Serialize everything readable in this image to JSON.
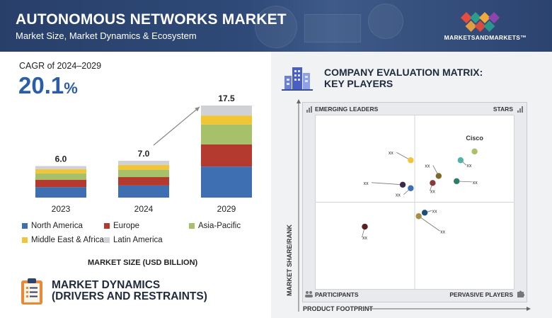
{
  "header": {
    "title": "AUTONOMOUS NETWORKS MARKET",
    "subtitle": "Market Size, Market Dynamics & Ecosystem",
    "brand": "MARKETSANDMARKETS™",
    "brand_colors": [
      "#e84c3d",
      "#2a9d8f",
      "#f2a93b",
      "#8e44ad"
    ]
  },
  "cagr": {
    "label": "CAGR of 2024–2029",
    "value": "20.1",
    "unit": "%"
  },
  "chart_data": [
    {
      "type": "bar",
      "stacked": true,
      "title": "",
      "categories": [
        "2023",
        "2024",
        "2029"
      ],
      "totals_labels": [
        "6.0",
        "7.0",
        "17.5"
      ],
      "totals": [
        6.0,
        7.0,
        17.5
      ],
      "series": [
        {
          "name": "North America",
          "color": "#3f6fb3",
          "values": [
            2.0,
            2.3,
            5.9
          ]
        },
        {
          "name": "Europe",
          "color": "#b4392f",
          "values": [
            1.4,
            1.6,
            4.2
          ]
        },
        {
          "name": "Asia-Pacific",
          "color": "#a7c06a",
          "values": [
            1.2,
            1.4,
            3.8
          ]
        },
        {
          "name": "Middle East & Africa",
          "color": "#f2c535",
          "values": [
            0.8,
            0.9,
            1.7
          ]
        },
        {
          "name": "Latin America",
          "color": "#cfd1d6",
          "values": [
            0.6,
            0.8,
            1.9
          ]
        }
      ],
      "xlabel": "MARKET SIZE (USD BILLION)",
      "ylabel": "",
      "ylim": [
        0,
        18.5
      ],
      "annotation": "arrow from 2024 to 2029"
    },
    {
      "type": "scatter",
      "title": "COMPANY EVALUATION MATRIX: KEY PLAYERS",
      "xlabel": "PRODUCT FOOTPRINT",
      "ylabel": "MARKET SHARE/RANK",
      "xlim": [
        0,
        100
      ],
      "ylim": [
        0,
        100
      ],
      "quadrants": {
        "top_left": "EMERGING LEADERS",
        "top_right": "STARS",
        "bottom_left": "PARTICIPANTS",
        "bottom_right": "PERVASIVE PLAYERS"
      },
      "points": [
        {
          "label": "Cisco",
          "x": 80,
          "y": 79,
          "color": "#a7c06a"
        },
        {
          "label": "xx",
          "x": 73,
          "y": 74,
          "color": "#4fb3a9"
        },
        {
          "label": "xx",
          "x": 48,
          "y": 74,
          "color": "#f2c535"
        },
        {
          "label": "xx",
          "x": 62,
          "y": 65,
          "color": "#7a6a2a"
        },
        {
          "label": "xx",
          "x": 71,
          "y": 62,
          "color": "#2e7d6b"
        },
        {
          "label": "xx",
          "x": 59,
          "y": 61,
          "color": "#8b3a3a"
        },
        {
          "label": "xx",
          "x": 44,
          "y": 60,
          "color": "#3b2a4a"
        },
        {
          "label": "xx",
          "x": 48,
          "y": 58,
          "color": "#3f6fb3"
        },
        {
          "label": "xx",
          "x": 55,
          "y": 44,
          "color": "#1f4e79"
        },
        {
          "label": "xx",
          "x": 52,
          "y": 42,
          "color": "#a39244"
        },
        {
          "label": "xx",
          "x": 25,
          "y": 36,
          "color": "#5c2020"
        }
      ]
    }
  ],
  "market_dynamics": {
    "title_line1": "MARKET DYNAMICS",
    "title_line2": "(DRIVERS AND RESTRAINTS)"
  },
  "cem": {
    "title_line1": "COMPANY EVALUATION MATRIX:",
    "title_line2": "KEY PLAYERS"
  }
}
